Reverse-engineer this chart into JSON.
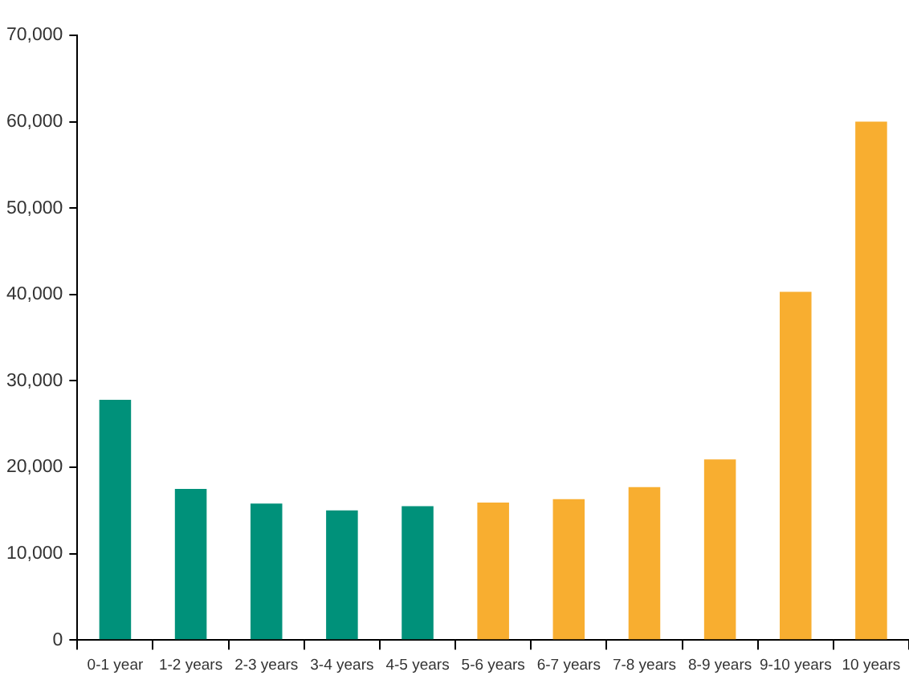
{
  "chart_data": {
    "type": "bar",
    "categories": [
      "0-1 year",
      "1-2 years",
      "2-3 years",
      "3-4 years",
      "4-5 years",
      "5-6 years",
      "6-7 years",
      "7-8 years",
      "8-9 years",
      "9-10 years",
      "10 years"
    ],
    "values": [
      27800,
      17500,
      15800,
      15000,
      15500,
      15900,
      16300,
      17700,
      20900,
      40300,
      60000
    ],
    "colors": [
      "#00917a",
      "#00917a",
      "#00917a",
      "#00917a",
      "#00917a",
      "#f8ae30",
      "#f8ae30",
      "#f8ae30",
      "#f8ae30",
      "#f8ae30",
      "#f8ae30"
    ],
    "ylim": [
      0,
      70000
    ],
    "yticks": [
      0,
      {
        "value": 10000,
        "label": "10,000"
      },
      {
        "value": 20000,
        "label": "20,000"
      },
      {
        "value": 30000,
        "label": "30,000"
      },
      {
        "value": 40000,
        "label": "40,000"
      },
      {
        "value": 50000,
        "label": "50,000"
      },
      {
        "value": 60000,
        "label": "60,000"
      },
      {
        "value": 70000,
        "label": "70,000"
      }
    ]
  }
}
